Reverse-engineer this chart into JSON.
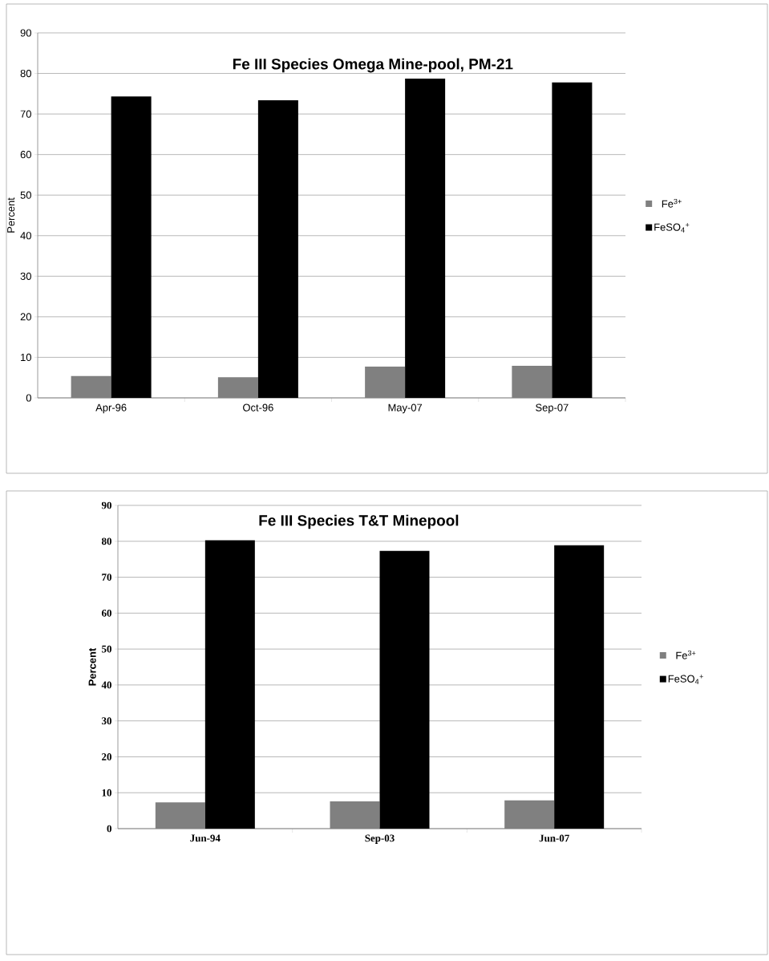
{
  "chart_data": [
    {
      "type": "bar",
      "title": "Fe III Species Omega Mine-pool,  PM-21",
      "ylabel": "Percent",
      "categories": [
        "Apr-96",
        "Oct-96",
        "May-07",
        "Sep-07"
      ],
      "series": [
        {
          "name": "Fe$^{3+}$",
          "color": "#808080",
          "values": [
            5.4,
            5.1,
            7.7,
            7.9
          ]
        },
        {
          "name": "FeSO$_{4}$$^{+}$",
          "color": "#000000",
          "values": [
            74.3,
            73.4,
            78.7,
            77.8
          ]
        }
      ],
      "ylim": [
        0,
        90
      ],
      "yticks": [
        0,
        10,
        20,
        30,
        40,
        50,
        60,
        70,
        80,
        90
      ],
      "grid": "y",
      "legend": "right"
    },
    {
      "type": "bar",
      "title": "Fe III Species T&T Minepool",
      "ylabel": "Percent",
      "categories": [
        "Jun-94",
        "Sep-03",
        "Jun-07"
      ],
      "series": [
        {
          "name": "Fe$^{3+}$",
          "color": "#808080",
          "values": [
            7.3,
            7.6,
            7.9
          ]
        },
        {
          "name": "FeSO$_{4}$$^{+}$",
          "color": "#000000",
          "values": [
            80.3,
            77.3,
            78.9
          ]
        }
      ],
      "ylim": [
        0,
        90
      ],
      "yticks": [
        0,
        10,
        20,
        30,
        40,
        50,
        60,
        70,
        80,
        90
      ],
      "grid": "y",
      "legend": "right"
    }
  ]
}
